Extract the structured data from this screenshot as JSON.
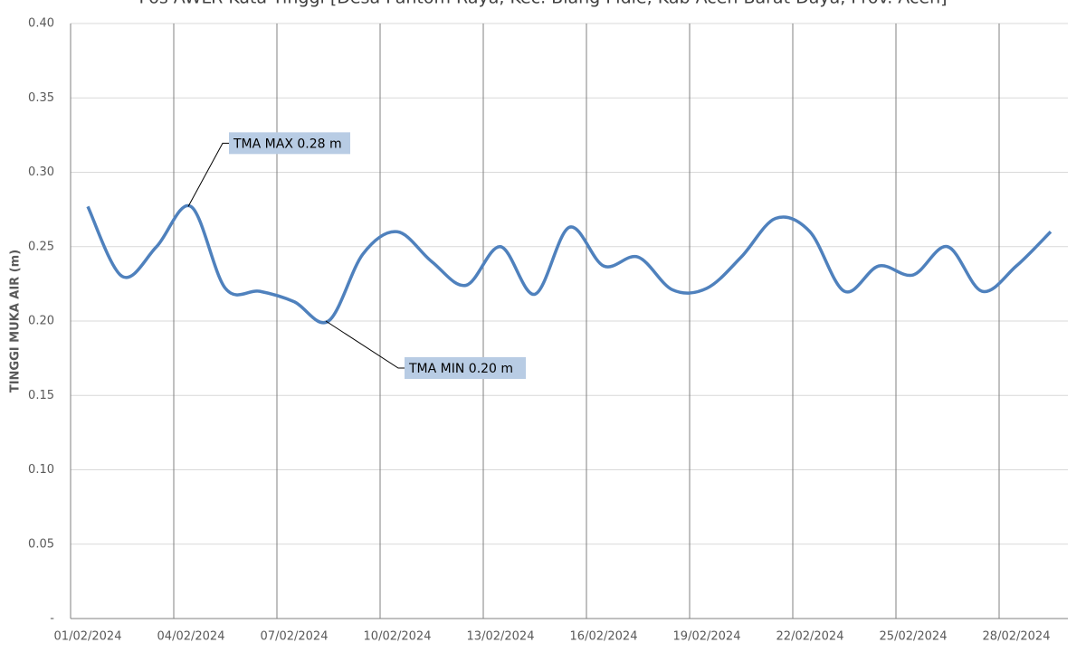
{
  "chart_data": {
    "type": "line",
    "title": "Pos AWLR Kuta Tinggi [Desa Pantom Raya, Kec. Blang Pidie, Kab Aceh Barat Daya, Prov. Aceh]",
    "y_label": "TINGGI MUKA AIR (m)",
    "categories": [
      "01/02/2024",
      null,
      null,
      "04/02/2024",
      null,
      null,
      "07/02/2024",
      null,
      null,
      "10/02/2024",
      null,
      null,
      "13/02/2024",
      null,
      null,
      "16/02/2024",
      null,
      null,
      "19/02/2024",
      null,
      null,
      "22/02/2024",
      null,
      null,
      "25/02/2024",
      null,
      null,
      "28/02/2024",
      null
    ],
    "series": [
      {
        "color": "#4f81bd",
        "values": [
          0.277,
          0.23,
          0.25,
          0.277,
          0.222,
          0.22,
          0.213,
          0.2,
          0.245,
          0.26,
          0.24,
          0.224,
          0.25,
          0.218,
          0.263,
          0.237,
          0.243,
          0.221,
          0.222,
          0.243,
          0.269,
          0.26,
          0.22,
          0.237,
          0.231,
          0.25,
          0.22,
          0.237,
          0.26
        ]
      }
    ],
    "ylim": [
      0,
      0.4
    ],
    "yticks": [
      {
        "value": 0,
        "label": "-"
      },
      0.05,
      {
        "value": 0.1,
        "label": "0.10"
      },
      0.15,
      {
        "value": 0.2,
        "label": "0.20"
      },
      0.25,
      {
        "value": 0.3,
        "label": "0.30"
      },
      0.35,
      {
        "value": 0.4,
        "label": "0.40"
      }
    ],
    "annotations": [
      {
        "text": "TMA MAX 0.28 m",
        "index": 3
      },
      {
        "text": "TMA MIN 0.20 m",
        "index": 7
      }
    ],
    "grid": true,
    "smooth": true
  }
}
